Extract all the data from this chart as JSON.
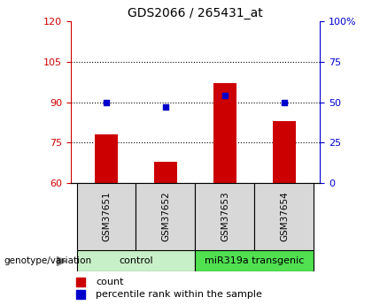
{
  "title": "GDS2066 / 265431_at",
  "samples": [
    "GSM37651",
    "GSM37652",
    "GSM37653",
    "GSM37654"
  ],
  "bar_values": [
    78,
    68,
    97,
    83
  ],
  "bar_baseline": 60,
  "percentile_values": [
    50,
    47,
    54,
    50
  ],
  "bar_color": "#cc0000",
  "dot_color": "#0000cc",
  "ylim_left": [
    60,
    120
  ],
  "ylim_right": [
    0,
    100
  ],
  "yticks_left": [
    60,
    75,
    90,
    105,
    120
  ],
  "yticks_right": [
    0,
    25,
    50,
    75,
    100
  ],
  "ytick_labels_right": [
    "0",
    "25",
    "50",
    "75",
    "100%"
  ],
  "hlines": [
    75,
    90,
    105
  ],
  "groups": [
    {
      "label": "control",
      "indices": [
        0,
        1
      ],
      "color": "#c8f0c8"
    },
    {
      "label": "miR319a transgenic",
      "indices": [
        2,
        3
      ],
      "color": "#50e050"
    }
  ],
  "group_label_prefix": "genotype/variation",
  "legend_items": [
    {
      "label": "count",
      "color": "#cc0000"
    },
    {
      "label": "percentile rank within the sample",
      "color": "#0000cc"
    }
  ],
  "bar_width": 0.4,
  "x_positions": [
    0,
    1,
    2,
    3
  ],
  "left_tick_color": "#cc0000",
  "right_tick_color": "#0000cc"
}
